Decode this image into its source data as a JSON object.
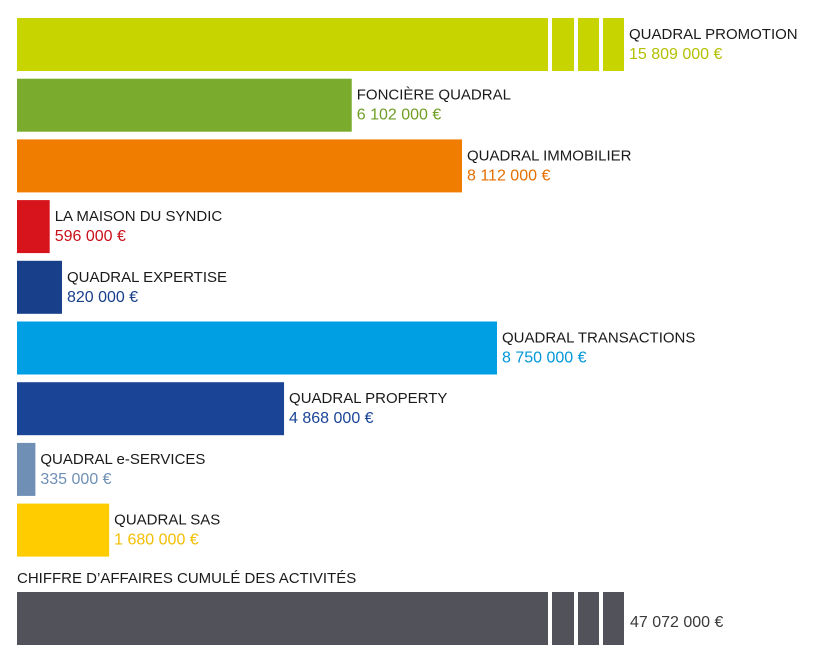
{
  "chart_data": {
    "type": "bar",
    "orientation": "horizontal",
    "categories": [
      "QUADRAL PROMOTION",
      "FONCIÈRE QUADRAL",
      "QUADRAL IMMOBILIER",
      "LA MAISON DU SYNDIC",
      "QUADRAL EXPERTISE",
      "QUADRAL TRANSACTIONS",
      "QUADRAL PROPERTY",
      "QUADRAL e-SERVICES",
      "QUADRAL SAS"
    ],
    "values": [
      15809000,
      6102000,
      8112000,
      596000,
      820000,
      8750000,
      4868000,
      335000,
      1680000
    ],
    "value_labels": [
      "15 809 000 €",
      "6 102 000 €",
      "8 112 000 €",
      "596 000 €",
      "820 000 €",
      "8 750 000 €",
      "4 868 000 €",
      "335 000 €",
      "1 680 000 €"
    ],
    "colors": [
      "#c8d400",
      "#7aab2c",
      "#f07d00",
      "#d7141c",
      "#173f8a",
      "#009fe3",
      "#1a4596",
      "#6f8fb5",
      "#ffcc00"
    ],
    "value_text_colors": [
      "#b3c000",
      "#6f9e25",
      "#e46f00",
      "#c8101a",
      "#173f8a",
      "#0097d8",
      "#1a4596",
      "#6f8fb5",
      "#f2be00"
    ],
    "broken_axis_bars": [
      "QUADRAL PROMOTION"
    ],
    "total": {
      "label": "CHIFFRE D’AFFAIRES CUMULÉ DES ACTIVITÉS",
      "value": 47072000,
      "value_label": "47 072 000 €",
      "color": "#52525a",
      "broken_axis": true
    },
    "grid": false,
    "legend": "none"
  }
}
